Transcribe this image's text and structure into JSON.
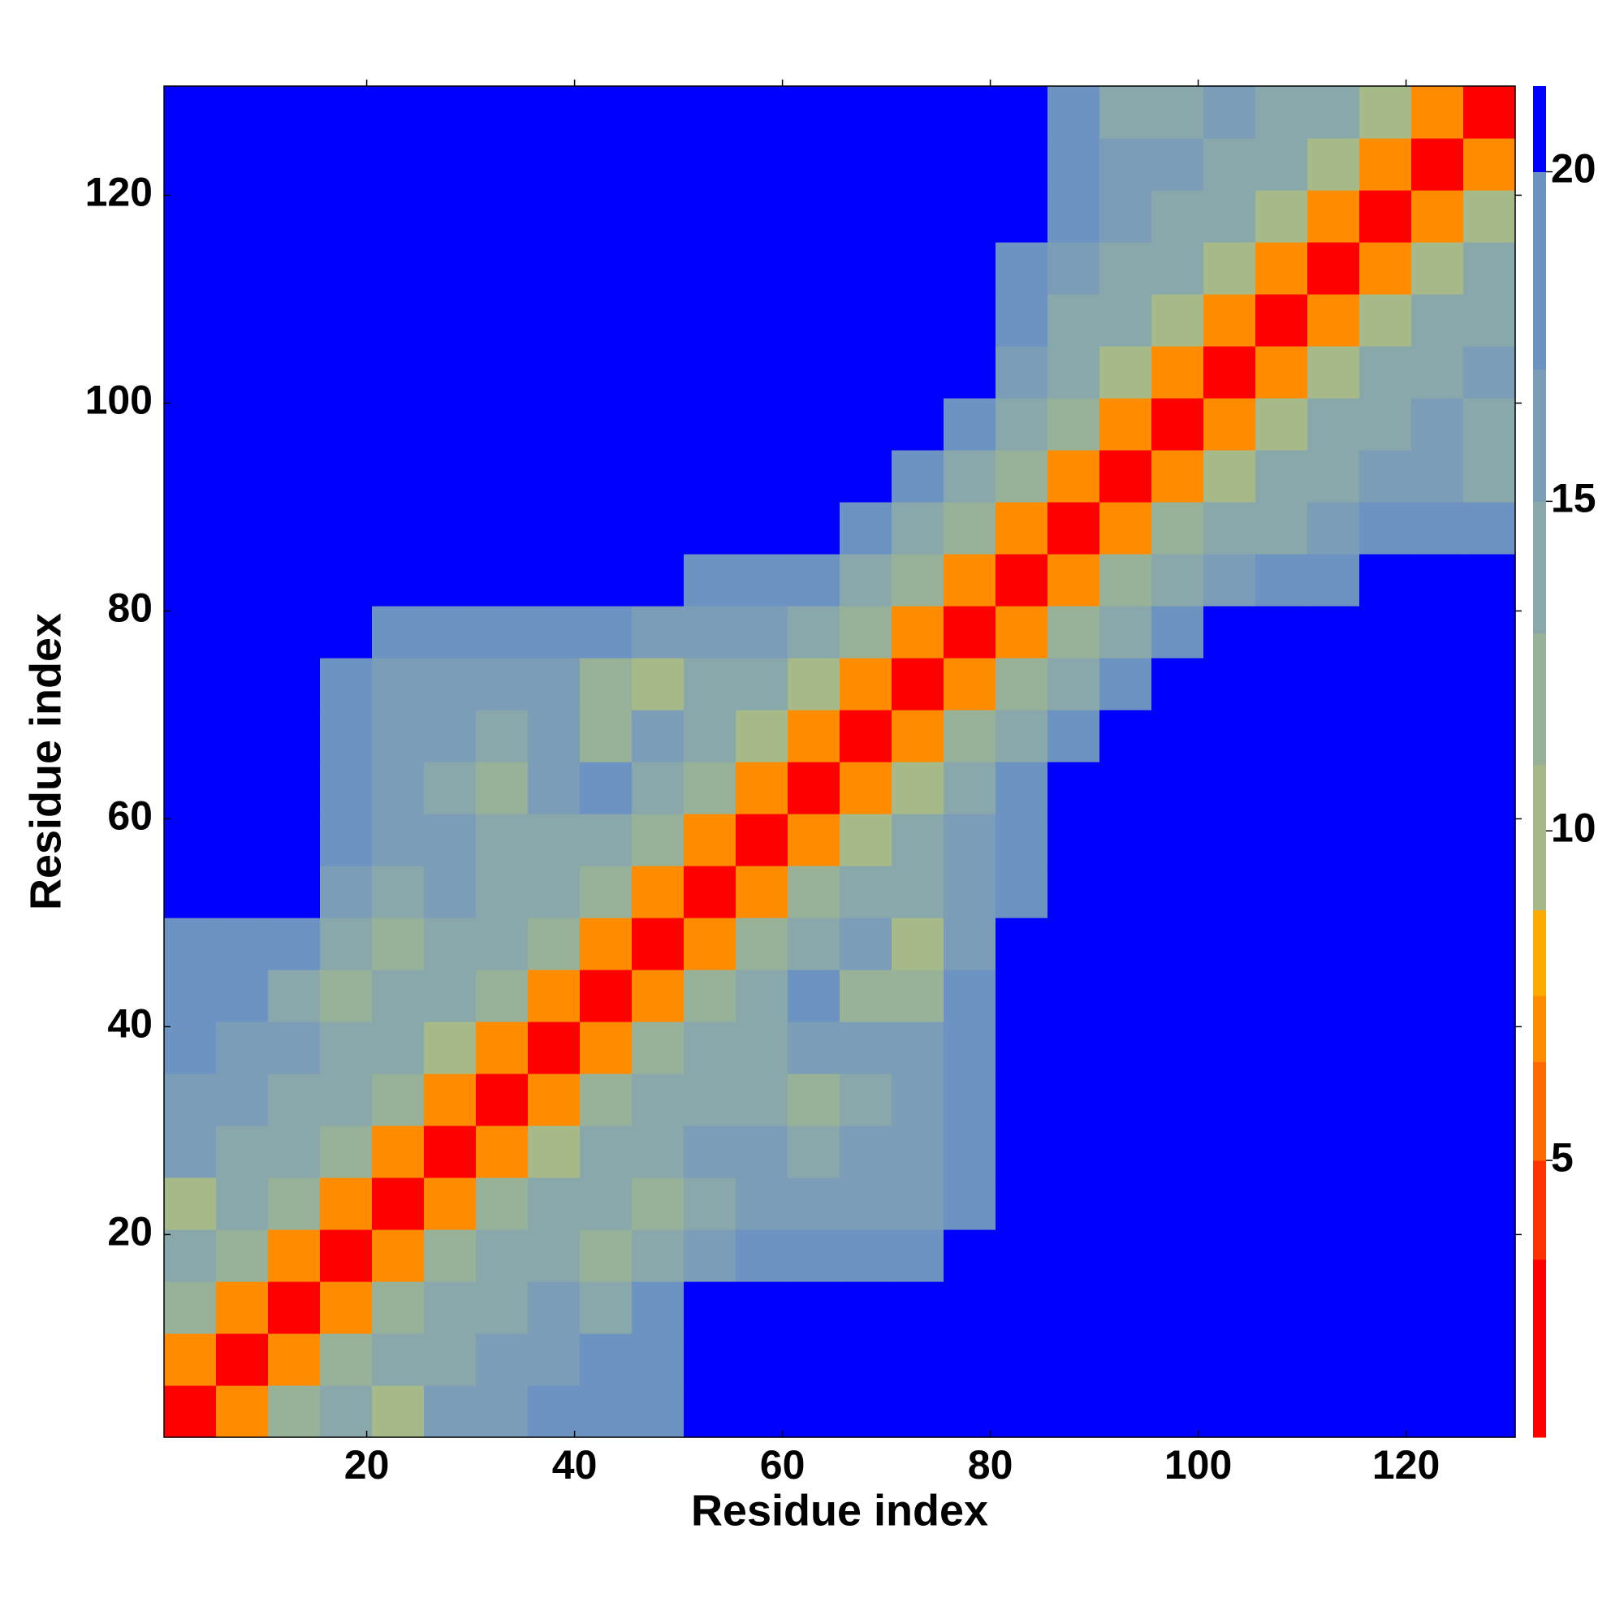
{
  "chart_data": {
    "type": "heatmap",
    "x_label": "Residue index",
    "y_label": "Residue index",
    "xbins": [
      0.5,
      5.5,
      10.5,
      15.5,
      20.5,
      25.5,
      30.5,
      35.5,
      40.5,
      45.5,
      50.5,
      55.5,
      60.5,
      65.5,
      70.5,
      75.5,
      80.5,
      85.5,
      90.5,
      95.5,
      100.5,
      105.5,
      110.5,
      115.5,
      120.5,
      125.5,
      130.5
    ],
    "ybins": [
      0.5,
      5.5,
      10.5,
      15.5,
      20.5,
      25.5,
      30.5,
      35.5,
      40.5,
      45.5,
      50.5,
      55.5,
      60.5,
      65.5,
      70.5,
      75.5,
      80.5,
      85.5,
      90.5,
      95.5,
      100.5,
      105.5,
      110.5,
      115.5,
      120.5,
      125.5,
      130.5
    ],
    "xlim": [
      0.5,
      130.5
    ],
    "ylim": [
      0.5,
      130.5
    ],
    "xticks": [
      20,
      40,
      60,
      80,
      100,
      120
    ],
    "yticks": [
      20,
      40,
      60,
      80,
      100,
      120
    ],
    "z": [
      [
        3,
        7,
        11,
        14,
        10,
        15,
        16,
        17,
        18,
        19,
        21,
        21,
        21,
        20,
        21,
        21,
        21,
        21,
        21,
        21,
        21,
        21,
        21,
        21,
        21,
        21
      ],
      [
        7,
        3,
        7,
        11,
        13,
        14,
        15,
        16,
        17,
        18,
        20,
        21,
        21,
        20,
        21,
        21,
        21,
        21,
        21,
        21,
        21,
        21,
        21,
        21,
        21,
        21
      ],
      [
        11,
        7,
        3,
        7,
        11,
        13,
        14,
        15,
        14,
        17,
        20,
        21,
        20,
        20,
        20,
        21,
        21,
        21,
        21,
        21,
        21,
        21,
        21,
        21,
        21,
        21
      ],
      [
        14,
        11,
        7,
        3,
        7,
        11,
        13,
        14,
        11,
        13,
        16,
        18,
        17,
        17,
        18,
        20,
        21,
        21,
        21,
        21,
        21,
        21,
        21,
        21,
        21,
        21
      ],
      [
        10,
        13,
        11,
        7,
        3,
        7,
        11,
        13,
        14,
        11,
        14,
        15,
        16,
        16,
        16,
        18,
        20,
        21,
        21,
        21,
        21,
        21,
        21,
        21,
        21,
        21
      ],
      [
        15,
        14,
        13,
        11,
        7,
        3,
        7,
        10,
        13,
        14,
        15,
        15,
        14,
        15,
        16,
        18,
        21,
        21,
        21,
        21,
        21,
        21,
        21,
        21,
        21,
        21
      ],
      [
        16,
        15,
        14,
        13,
        11,
        7,
        3,
        7,
        11,
        13,
        14,
        14,
        12,
        14,
        15,
        17,
        21,
        21,
        21,
        21,
        21,
        21,
        21,
        21,
        21,
        21
      ],
      [
        17,
        16,
        15,
        14,
        13,
        10,
        7,
        3,
        7,
        11,
        13,
        14,
        15,
        16,
        16,
        18,
        21,
        21,
        21,
        21,
        21,
        21,
        21,
        21,
        21,
        21
      ],
      [
        18,
        17,
        14,
        11,
        14,
        13,
        11,
        7,
        3,
        7,
        11,
        14,
        18,
        12,
        11,
        17,
        20,
        21,
        21,
        21,
        21,
        21,
        21,
        21,
        21,
        21
      ],
      [
        19,
        18,
        17,
        13,
        11,
        14,
        13,
        11,
        7,
        3,
        7,
        11,
        14,
        15,
        10,
        16,
        20,
        21,
        21,
        21,
        21,
        21,
        21,
        21,
        21,
        21
      ],
      [
        21,
        20,
        20,
        16,
        14,
        15,
        14,
        13,
        11,
        7,
        3,
        7,
        11,
        13,
        14,
        16,
        19,
        21,
        21,
        21,
        21,
        21,
        21,
        21,
        21,
        21
      ],
      [
        21,
        21,
        21,
        18,
        15,
        15,
        14,
        14,
        14,
        11,
        7,
        3,
        7,
        10,
        13,
        15,
        18,
        21,
        21,
        21,
        21,
        21,
        21,
        21,
        21,
        21
      ],
      [
        21,
        21,
        20,
        17,
        16,
        14,
        12,
        15,
        18,
        14,
        11,
        7,
        3,
        7,
        10,
        13,
        17,
        20,
        21,
        21,
        21,
        21,
        21,
        21,
        21,
        21
      ],
      [
        20,
        20,
        20,
        17,
        16,
        15,
        14,
        16,
        12,
        15,
        13,
        10,
        7,
        3,
        7,
        11,
        14,
        18,
        21,
        21,
        21,
        21,
        21,
        21,
        21,
        21
      ],
      [
        21,
        21,
        20,
        18,
        16,
        16,
        15,
        16,
        11,
        10,
        14,
        13,
        10,
        7,
        3,
        7,
        11,
        14,
        19,
        21,
        21,
        21,
        21,
        21,
        21,
        21
      ],
      [
        21,
        21,
        21,
        20,
        18,
        18,
        17,
        18,
        17,
        16,
        16,
        15,
        13,
        11,
        7,
        3,
        7,
        11,
        14,
        18,
        20,
        21,
        21,
        21,
        21,
        21
      ],
      [
        21,
        21,
        21,
        21,
        20,
        21,
        21,
        21,
        20,
        20,
        19,
        18,
        17,
        14,
        11,
        7,
        3,
        7,
        11,
        13,
        15,
        17,
        19,
        20,
        20,
        20
      ],
      [
        21,
        21,
        21,
        21,
        21,
        21,
        21,
        21,
        21,
        21,
        21,
        21,
        20,
        18,
        14,
        11,
        7,
        3,
        7,
        11,
        13,
        14,
        16,
        17,
        17,
        17
      ],
      [
        21,
        21,
        21,
        21,
        21,
        21,
        21,
        21,
        21,
        21,
        21,
        21,
        21,
        21,
        19,
        14,
        11,
        7,
        3,
        7,
        10,
        13,
        14,
        15,
        15,
        14
      ],
      [
        21,
        21,
        21,
        21,
        21,
        21,
        21,
        21,
        21,
        21,
        21,
        21,
        21,
        21,
        21,
        18,
        13,
        11,
        7,
        3,
        7,
        10,
        13,
        14,
        15,
        14
      ],
      [
        21,
        21,
        21,
        21,
        21,
        21,
        21,
        21,
        21,
        21,
        21,
        21,
        21,
        21,
        21,
        20,
        15,
        13,
        10,
        7,
        3,
        7,
        10,
        13,
        14,
        15
      ],
      [
        21,
        21,
        21,
        21,
        21,
        21,
        21,
        21,
        21,
        21,
        21,
        21,
        21,
        21,
        21,
        21,
        17,
        14,
        13,
        10,
        7,
        3,
        7,
        10,
        13,
        14
      ],
      [
        21,
        21,
        21,
        21,
        21,
        21,
        21,
        21,
        21,
        21,
        21,
        21,
        21,
        21,
        21,
        21,
        19,
        16,
        14,
        13,
        10,
        7,
        3,
        7,
        10,
        13
      ],
      [
        21,
        21,
        21,
        21,
        21,
        21,
        21,
        21,
        21,
        21,
        21,
        21,
        21,
        21,
        21,
        21,
        20,
        17,
        15,
        14,
        13,
        10,
        7,
        3,
        7,
        10
      ],
      [
        21,
        21,
        21,
        21,
        21,
        21,
        21,
        21,
        21,
        21,
        21,
        21,
        21,
        21,
        21,
        21,
        20,
        17,
        15,
        15,
        14,
        13,
        10,
        7,
        3,
        7
      ],
      [
        21,
        21,
        21,
        21,
        21,
        21,
        21,
        21,
        21,
        21,
        21,
        21,
        21,
        21,
        21,
        21,
        20,
        17,
        14,
        14,
        15,
        14,
        13,
        10,
        7,
        3
      ]
    ],
    "clim": [
      0.8,
      21.3
    ],
    "colorbar_ticks": [
      5,
      10,
      15,
      20
    ],
    "colorscale": [
      [
        0.8,
        "#ff0000"
      ],
      [
        3.5,
        "#ff3300"
      ],
      [
        5,
        "#ff6a00"
      ],
      [
        6.5,
        "#ff8c00"
      ],
      [
        7.5,
        "#ffaa00"
      ],
      [
        8.8,
        "#a5ba88"
      ],
      [
        11,
        "#98b29a"
      ],
      [
        13,
        "#88a8ac"
      ],
      [
        15,
        "#7c9db8"
      ],
      [
        17,
        "#6d93c2"
      ],
      [
        20,
        "#0000ff"
      ]
    ]
  }
}
